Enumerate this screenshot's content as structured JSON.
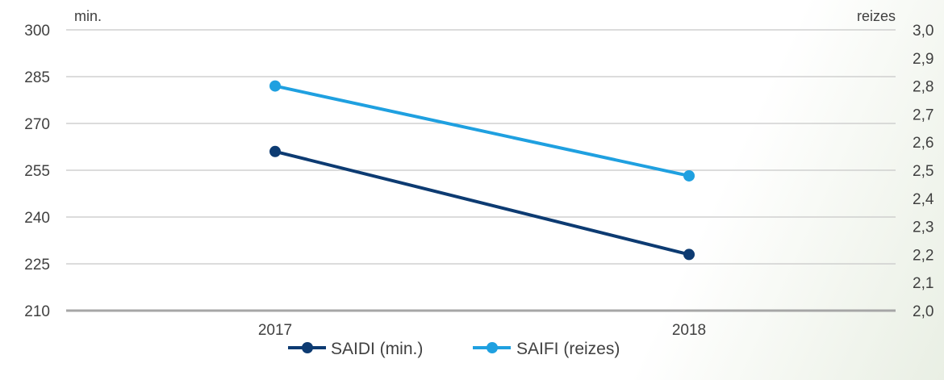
{
  "chart_data": {
    "type": "line",
    "categories": [
      "2017",
      "2018"
    ],
    "series": [
      {
        "name": "SAIDI (min.)",
        "axis": "left",
        "color": "#0d3b72",
        "values": [
          261,
          228
        ]
      },
      {
        "name": "SAIFI (reizes)",
        "axis": "right",
        "color": "#1fa0e0",
        "values": [
          2.8,
          2.48
        ]
      }
    ],
    "left_axis": {
      "unit_label": "min.",
      "ylim": [
        210,
        300
      ],
      "ticks": [
        "300",
        "285",
        "270",
        "255",
        "240",
        "225",
        "210"
      ],
      "tick_values": [
        300,
        285,
        270,
        255,
        240,
        225,
        210
      ]
    },
    "right_axis": {
      "unit_label": "reizes",
      "ylim": [
        2.0,
        3.0
      ],
      "ticks": [
        "3,0",
        "2,9",
        "2,8",
        "2,7",
        "2,6",
        "2,5",
        "2,4",
        "2,3",
        "2,2",
        "2,1",
        "2,0"
      ],
      "tick_values": [
        3.0,
        2.9,
        2.8,
        2.7,
        2.6,
        2.5,
        2.4,
        2.3,
        2.2,
        2.1,
        2.0
      ]
    },
    "grid": "horizontal",
    "legend_position": "bottom",
    "colors": {
      "gridline": "#c8c8c8",
      "baseline": "#a6a6a6",
      "text": "#404040"
    }
  }
}
